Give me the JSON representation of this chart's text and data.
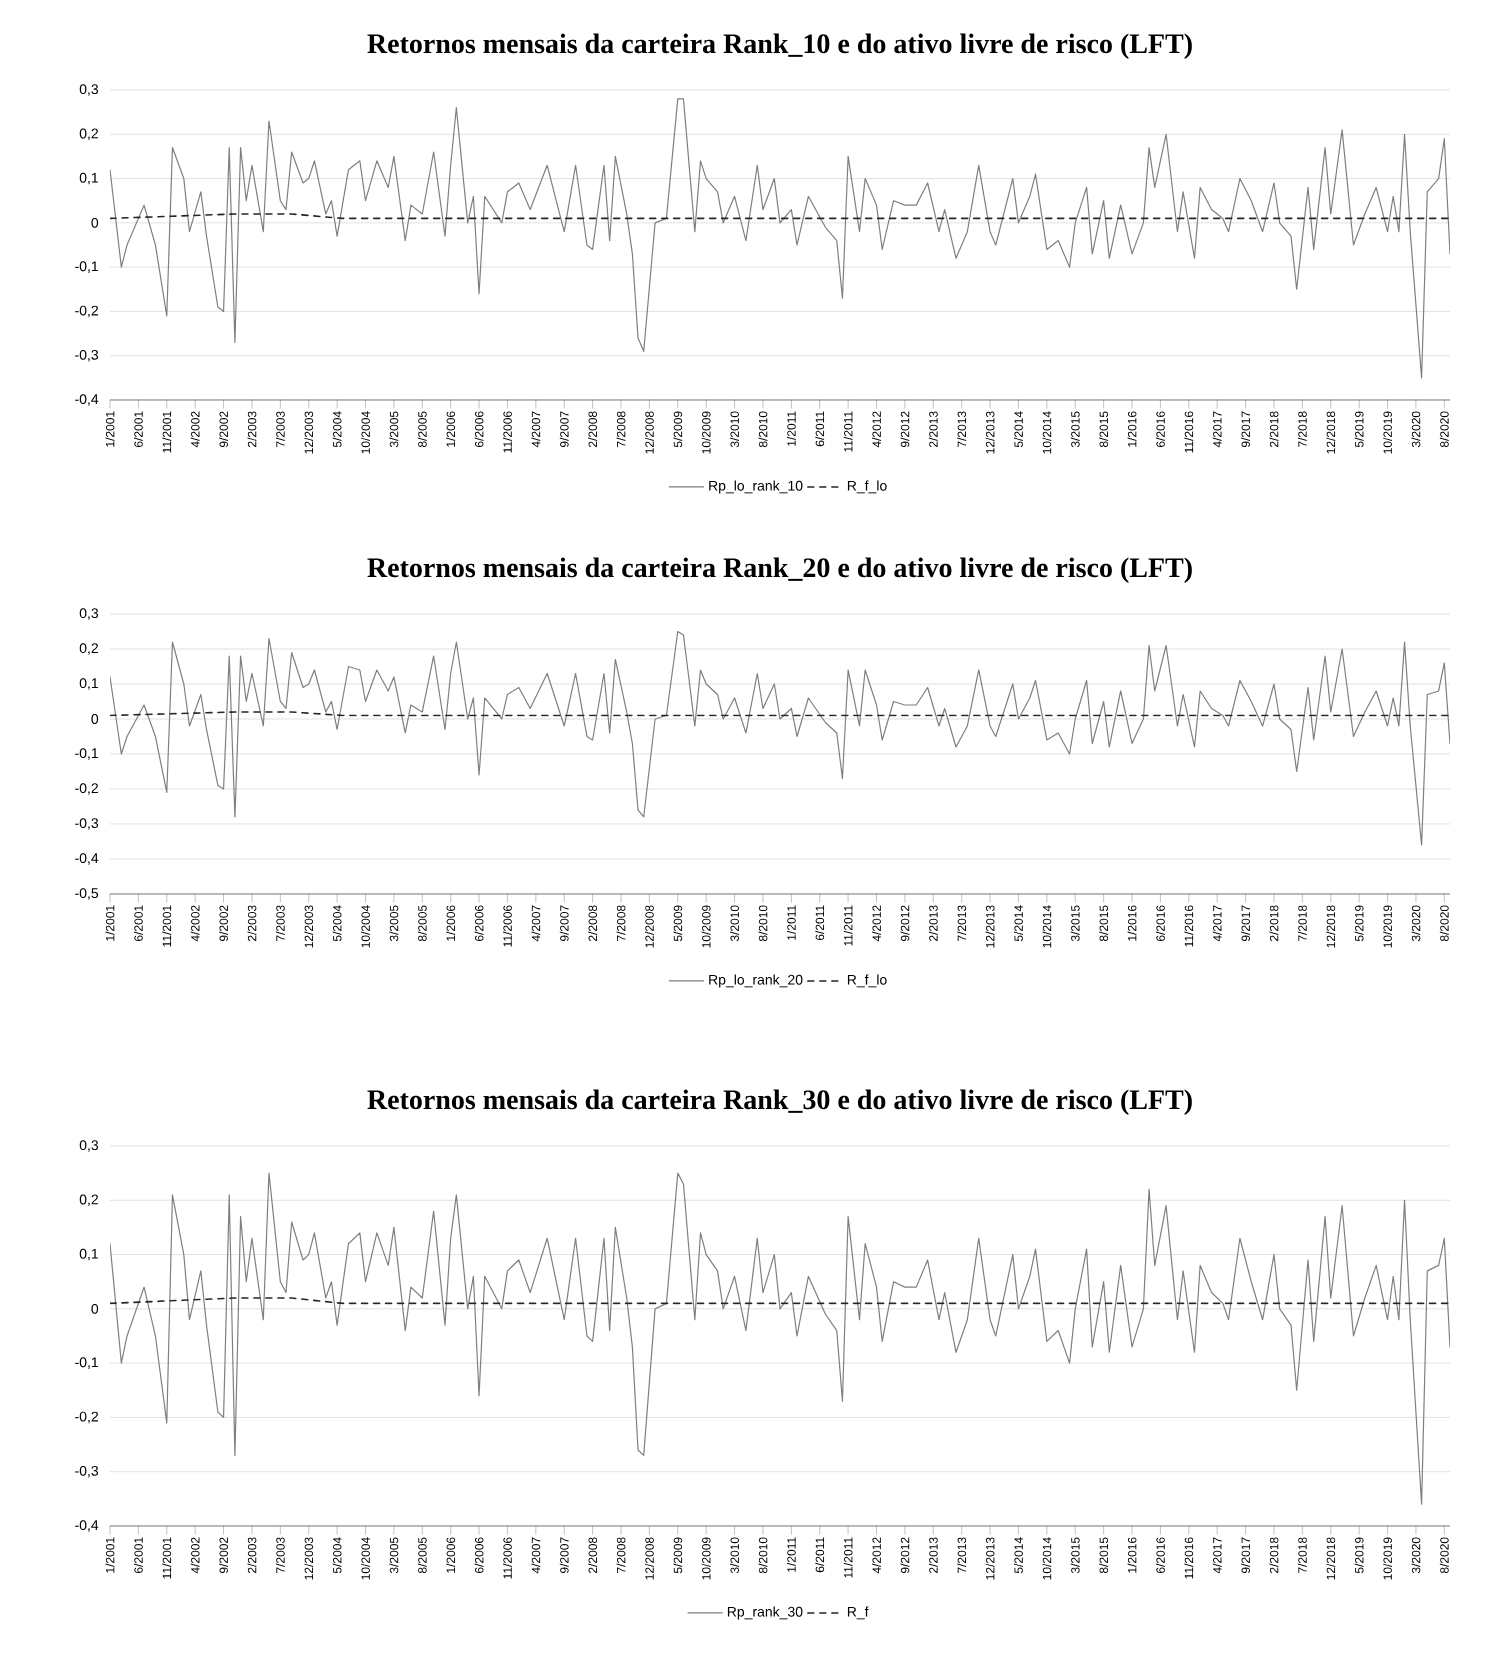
{
  "chart_data": [
    {
      "type": "line",
      "title": "Retornos mensais da carteira Rank_10 e do ativo livre de risco (LFT)",
      "grid": "y",
      "legend": "bottom",
      "marker": "none",
      "xlim": [
        "2001-01",
        "2020-09"
      ],
      "ylim": [
        -0.4,
        0.3
      ],
      "yticks": [
        {
          "value": -0.4,
          "label": "-0,4"
        },
        {
          "value": -0.3,
          "label": "-0,3"
        },
        {
          "value": -0.2,
          "label": "-0,2"
        },
        {
          "value": -0.1,
          "label": "-0,1"
        },
        0,
        {
          "value": 0.1,
          "label": "0,1"
        },
        {
          "value": 0.2,
          "label": "0,2"
        },
        {
          "value": 0.3,
          "label": "0,3"
        }
      ],
      "xticks": [
        {
          "value": "2001-01",
          "label": "1/2001"
        },
        {
          "value": "2001-06",
          "label": "6/2001"
        },
        {
          "value": "2001-11",
          "label": "11/2001"
        },
        {
          "value": "2002-04",
          "label": "4/2002"
        },
        {
          "value": "2002-09",
          "label": "9/2002"
        },
        {
          "value": "2003-02",
          "label": "2/2003"
        },
        {
          "value": "2003-07",
          "label": "7/2003"
        },
        {
          "value": "2003-12",
          "label": "12/2003"
        },
        {
          "value": "2004-05",
          "label": "5/2004"
        },
        {
          "value": "2004-10",
          "label": "10/2004"
        },
        {
          "value": "2005-03",
          "label": "3/2005"
        },
        {
          "value": "2005-08",
          "label": "8/2005"
        },
        {
          "value": "2006-01",
          "label": "1/2006"
        },
        {
          "value": "2006-06",
          "label": "6/2006"
        },
        {
          "value": "2006-11",
          "label": "11/2006"
        },
        {
          "value": "2007-04",
          "label": "4/2007"
        },
        {
          "value": "2007-09",
          "label": "9/2007"
        },
        {
          "value": "2008-02",
          "label": "2/2008"
        },
        {
          "value": "2008-07",
          "label": "7/2008"
        },
        {
          "value": "2008-12",
          "label": "12/2008"
        },
        {
          "value": "2009-05",
          "label": "5/2009"
        },
        {
          "value": "2009-10",
          "label": "10/2009"
        },
        {
          "value": "2010-03",
          "label": "3/2010"
        },
        {
          "value": "2010-08",
          "label": "8/2010"
        },
        {
          "value": "2011-01",
          "label": "1/2011"
        },
        {
          "value": "2011-06",
          "label": "6/2011"
        },
        {
          "value": "2011-11",
          "label": "11/2011"
        },
        {
          "value": "2012-04",
          "label": "4/2012"
        },
        {
          "value": "2012-09",
          "label": "9/2012"
        },
        {
          "value": "2013-02",
          "label": "2/2013"
        },
        {
          "value": "2013-07",
          "label": "7/2013"
        },
        {
          "value": "2013-12",
          "label": "12/2013"
        },
        {
          "value": "2014-05",
          "label": "5/2014"
        },
        {
          "value": "2014-10",
          "label": "10/2014"
        },
        {
          "value": "2015-03",
          "label": "3/2015"
        },
        {
          "value": "2015-08",
          "label": "8/2015"
        },
        {
          "value": "2016-01",
          "label": "1/2016"
        },
        {
          "value": "2016-06",
          "label": "6/2016"
        },
        {
          "value": "2016-11",
          "label": "11/2016"
        },
        {
          "value": "2017-04",
          "label": "4/2017"
        },
        {
          "value": "2017-09",
          "label": "9/2017"
        },
        {
          "value": "2018-02",
          "label": "2/2018"
        },
        {
          "value": "2018-07",
          "label": "7/2018"
        },
        {
          "value": "2018-12",
          "label": "12/2018"
        },
        {
          "value": "2019-05",
          "label": "5/2019"
        },
        {
          "value": "2019-10",
          "label": "10/2019"
        },
        {
          "value": "2020-03",
          "label": "3/2020"
        },
        {
          "value": "2020-08",
          "label": "8/2020"
        }
      ],
      "series": [
        {
          "name": "Rp_lo_rank_10",
          "color": "#7f7f7f",
          "line_style": "solid",
          "x": [
            "2001-01",
            "2001-03",
            "2001-04",
            "2001-07",
            "2001-09",
            "2001-11",
            "2001-12",
            "2002-02",
            "2002-03",
            "2002-05",
            "2002-06",
            "2002-08",
            "2002-09",
            "2002-10",
            "2002-11",
            "2002-12",
            "2003-01",
            "2003-02",
            "2003-04",
            "2003-05",
            "2003-07",
            "2003-08",
            "2003-09",
            "2003-11",
            "2003-12",
            "2004-01",
            "2004-03",
            "2004-04",
            "2004-05",
            "2004-07",
            "2004-09",
            "2004-10",
            "2004-12",
            "2005-02",
            "2005-03",
            "2005-05",
            "2005-06",
            "2005-08",
            "2005-10",
            "2005-12",
            "2006-01",
            "2006-02",
            "2006-04",
            "2006-05",
            "2006-06",
            "2006-07",
            "2006-10",
            "2006-11",
            "2007-01",
            "2007-03",
            "2007-06",
            "2007-08",
            "2007-09",
            "2007-11",
            "2008-01",
            "2008-02",
            "2008-04",
            "2008-05",
            "2008-06",
            "2008-08",
            "2008-09",
            "2008-10",
            "2008-11",
            "2009-01",
            "2009-03",
            "2009-05",
            "2009-06",
            "2009-08",
            "2009-09",
            "2009-10",
            "2009-12",
            "2010-01",
            "2010-03",
            "2010-05",
            "2010-07",
            "2010-08",
            "2010-10",
            "2010-11",
            "2011-01",
            "2011-02",
            "2011-04",
            "2011-07",
            "2011-09",
            "2011-10",
            "2011-11",
            "2012-01",
            "2012-02",
            "2012-04",
            "2012-05",
            "2012-07",
            "2012-09",
            "2012-11",
            "2013-01",
            "2013-03",
            "2013-04",
            "2013-06",
            "2013-08",
            "2013-10",
            "2013-12",
            "2014-01",
            "2014-04",
            "2014-05",
            "2014-07",
            "2014-08",
            "2014-10",
            "2014-12",
            "2015-02",
            "2015-03",
            "2015-05",
            "2015-06",
            "2015-08",
            "2015-09",
            "2015-11",
            "2016-01",
            "2016-03",
            "2016-04",
            "2016-05",
            "2016-07",
            "2016-09",
            "2016-10",
            "2016-12",
            "2017-01",
            "2017-03",
            "2017-05",
            "2017-06",
            "2017-08",
            "2017-10",
            "2017-12",
            "2018-02",
            "2018-03",
            "2018-05",
            "2018-06",
            "2018-08",
            "2018-09",
            "2018-11",
            "2018-12",
            "2019-02",
            "2019-04",
            "2019-06",
            "2019-08",
            "2019-10",
            "2019-11",
            "2019-12",
            "2020-01",
            "2020-02",
            "2020-04",
            "2020-05",
            "2020-07",
            "2020-08",
            "2020-09"
          ],
          "values": [
            0.12,
            -0.1,
            -0.05,
            0.04,
            -0.05,
            -0.21,
            0.17,
            0.1,
            -0.02,
            0.07,
            -0.03,
            -0.19,
            -0.2,
            0.17,
            -0.27,
            0.17,
            0.05,
            0.13,
            -0.02,
            0.23,
            0.05,
            0.03,
            0.16,
            0.09,
            0.1,
            0.14,
            0.02,
            0.05,
            -0.03,
            0.12,
            0.14,
            0.05,
            0.14,
            0.08,
            0.15,
            -0.04,
            0.04,
            0.02,
            0.16,
            -0.03,
            0.13,
            0.26,
            0.0,
            0.06,
            -0.16,
            0.06,
            0.0,
            0.07,
            0.09,
            0.03,
            0.13,
            0.03,
            -0.02,
            0.13,
            -0.05,
            -0.06,
            0.13,
            -0.04,
            0.15,
            0.02,
            -0.07,
            -0.26,
            -0.29,
            0.0,
            0.01,
            0.28,
            0.28,
            -0.02,
            0.14,
            0.1,
            0.07,
            0.0,
            0.06,
            -0.04,
            0.13,
            0.03,
            0.1,
            0.0,
            0.03,
            -0.05,
            0.06,
            -0.01,
            -0.04,
            -0.17,
            0.15,
            -0.02,
            0.1,
            0.04,
            -0.06,
            0.05,
            0.04,
            0.04,
            0.09,
            -0.02,
            0.03,
            -0.08,
            -0.02,
            0.13,
            -0.02,
            -0.05,
            0.1,
            0.0,
            0.06,
            0.11,
            -0.06,
            -0.04,
            -0.1,
            0.0,
            0.08,
            -0.07,
            0.05,
            -0.08,
            0.04,
            -0.07,
            0.0,
            0.17,
            0.08,
            0.2,
            -0.02,
            0.07,
            -0.08,
            0.08,
            0.03,
            0.01,
            -0.02,
            0.1,
            0.05,
            -0.02,
            0.09,
            0.0,
            -0.03,
            -0.15,
            0.08,
            -0.06,
            0.17,
            0.02,
            0.21,
            -0.05,
            0.02,
            0.08,
            -0.02,
            0.06,
            -0.02,
            0.2,
            -0.02,
            -0.35,
            0.07,
            0.1,
            0.19,
            -0.07
          ]
        },
        {
          "name": "R_f_lo",
          "color": "#262626",
          "line_style": "dashed",
          "x": [
            "2001-01",
            "2002-11",
            "2003-09",
            "2004-06",
            "2020-09"
          ],
          "values": [
            0.01,
            0.02,
            0.02,
            0.01,
            0.01
          ]
        }
      ]
    },
    {
      "type": "line",
      "title": "Retornos mensais da carteira Rank_20 e do ativo livre de risco (LFT)",
      "grid": "y",
      "legend": "bottom",
      "marker": "none",
      "xlim": [
        "2001-01",
        "2020-09"
      ],
      "ylim": [
        -0.5,
        0.3
      ],
      "yticks": [
        {
          "value": -0.5,
          "label": "-0,5"
        },
        {
          "value": -0.4,
          "label": "-0,4"
        },
        {
          "value": -0.3,
          "label": "-0,3"
        },
        {
          "value": -0.2,
          "label": "-0,2"
        },
        {
          "value": -0.1,
          "label": "-0,1"
        },
        0,
        {
          "value": 0.1,
          "label": "0,1"
        },
        {
          "value": 0.2,
          "label": "0,2"
        },
        {
          "value": 0.3,
          "label": "0,3"
        }
      ],
      "xticks": [
        {
          "value": "2001-01",
          "label": "1/2001"
        },
        {
          "value": "2001-06",
          "label": "6/2001"
        },
        {
          "value": "2001-11",
          "label": "11/2001"
        },
        {
          "value": "2002-04",
          "label": "4/2002"
        },
        {
          "value": "2002-09",
          "label": "9/2002"
        },
        {
          "value": "2003-02",
          "label": "2/2003"
        },
        {
          "value": "2003-07",
          "label": "7/2003"
        },
        {
          "value": "2003-12",
          "label": "12/2003"
        },
        {
          "value": "2004-05",
          "label": "5/2004"
        },
        {
          "value": "2004-10",
          "label": "10/2004"
        },
        {
          "value": "2005-03",
          "label": "3/2005"
        },
        {
          "value": "2005-08",
          "label": "8/2005"
        },
        {
          "value": "2006-01",
          "label": "1/2006"
        },
        {
          "value": "2006-06",
          "label": "6/2006"
        },
        {
          "value": "2006-11",
          "label": "11/2006"
        },
        {
          "value": "2007-04",
          "label": "4/2007"
        },
        {
          "value": "2007-09",
          "label": "9/2007"
        },
        {
          "value": "2008-02",
          "label": "2/2008"
        },
        {
          "value": "2008-07",
          "label": "7/2008"
        },
        {
          "value": "2008-12",
          "label": "12/2008"
        },
        {
          "value": "2009-05",
          "label": "5/2009"
        },
        {
          "value": "2009-10",
          "label": "10/2009"
        },
        {
          "value": "2010-03",
          "label": "3/2010"
        },
        {
          "value": "2010-08",
          "label": "8/2010"
        },
        {
          "value": "2011-01",
          "label": "1/2011"
        },
        {
          "value": "2011-06",
          "label": "6/2011"
        },
        {
          "value": "2011-11",
          "label": "11/2011"
        },
        {
          "value": "2012-04",
          "label": "4/2012"
        },
        {
          "value": "2012-09",
          "label": "9/2012"
        },
        {
          "value": "2013-02",
          "label": "2/2013"
        },
        {
          "value": "2013-07",
          "label": "7/2013"
        },
        {
          "value": "2013-12",
          "label": "12/2013"
        },
        {
          "value": "2014-05",
          "label": "5/2014"
        },
        {
          "value": "2014-10",
          "label": "10/2014"
        },
        {
          "value": "2015-03",
          "label": "3/2015"
        },
        {
          "value": "2015-08",
          "label": "8/2015"
        },
        {
          "value": "2016-01",
          "label": "1/2016"
        },
        {
          "value": "2016-06",
          "label": "6/2016"
        },
        {
          "value": "2016-11",
          "label": "11/2016"
        },
        {
          "value": "2017-04",
          "label": "4/2017"
        },
        {
          "value": "2017-09",
          "label": "9/2017"
        },
        {
          "value": "2018-02",
          "label": "2/2018"
        },
        {
          "value": "2018-07",
          "label": "7/2018"
        },
        {
          "value": "2018-12",
          "label": "12/2018"
        },
        {
          "value": "2019-05",
          "label": "5/2019"
        },
        {
          "value": "2019-10",
          "label": "10/2019"
        },
        {
          "value": "2020-03",
          "label": "3/2020"
        },
        {
          "value": "2020-08",
          "label": "8/2020"
        }
      ],
      "series": [
        {
          "name": "Rp_lo_rank_20",
          "color": "#7f7f7f",
          "line_style": "solid",
          "x": [
            "2001-01",
            "2001-03",
            "2001-04",
            "2001-07",
            "2001-09",
            "2001-11",
            "2001-12",
            "2002-02",
            "2002-03",
            "2002-05",
            "2002-06",
            "2002-08",
            "2002-09",
            "2002-10",
            "2002-11",
            "2002-12",
            "2003-01",
            "2003-02",
            "2003-04",
            "2003-05",
            "2003-07",
            "2003-08",
            "2003-09",
            "2003-11",
            "2003-12",
            "2004-01",
            "2004-03",
            "2004-04",
            "2004-05",
            "2004-07",
            "2004-09",
            "2004-10",
            "2004-12",
            "2005-02",
            "2005-03",
            "2005-05",
            "2005-06",
            "2005-08",
            "2005-10",
            "2005-12",
            "2006-01",
            "2006-02",
            "2006-04",
            "2006-05",
            "2006-06",
            "2006-07",
            "2006-10",
            "2006-11",
            "2007-01",
            "2007-03",
            "2007-06",
            "2007-08",
            "2007-09",
            "2007-11",
            "2008-01",
            "2008-02",
            "2008-04",
            "2008-05",
            "2008-06",
            "2008-08",
            "2008-09",
            "2008-10",
            "2008-11",
            "2009-01",
            "2009-03",
            "2009-05",
            "2009-06",
            "2009-08",
            "2009-09",
            "2009-10",
            "2009-12",
            "2010-01",
            "2010-03",
            "2010-05",
            "2010-07",
            "2010-08",
            "2010-10",
            "2010-11",
            "2011-01",
            "2011-02",
            "2011-04",
            "2011-07",
            "2011-09",
            "2011-10",
            "2011-11",
            "2012-01",
            "2012-02",
            "2012-04",
            "2012-05",
            "2012-07",
            "2012-09",
            "2012-11",
            "2013-01",
            "2013-03",
            "2013-04",
            "2013-06",
            "2013-08",
            "2013-10",
            "2013-12",
            "2014-01",
            "2014-04",
            "2014-05",
            "2014-07",
            "2014-08",
            "2014-10",
            "2014-12",
            "2015-02",
            "2015-03",
            "2015-05",
            "2015-06",
            "2015-08",
            "2015-09",
            "2015-11",
            "2016-01",
            "2016-03",
            "2016-04",
            "2016-05",
            "2016-07",
            "2016-09",
            "2016-10",
            "2016-12",
            "2017-01",
            "2017-03",
            "2017-05",
            "2017-06",
            "2017-08",
            "2017-10",
            "2017-12",
            "2018-02",
            "2018-03",
            "2018-05",
            "2018-06",
            "2018-08",
            "2018-09",
            "2018-11",
            "2018-12",
            "2019-02",
            "2019-04",
            "2019-06",
            "2019-08",
            "2019-10",
            "2019-11",
            "2019-12",
            "2020-01",
            "2020-02",
            "2020-04",
            "2020-05",
            "2020-07",
            "2020-08",
            "2020-09"
          ],
          "values": [
            0.12,
            -0.1,
            -0.05,
            0.04,
            -0.05,
            -0.21,
            0.22,
            0.1,
            -0.02,
            0.07,
            -0.03,
            -0.19,
            -0.2,
            0.18,
            -0.28,
            0.18,
            0.05,
            0.13,
            -0.02,
            0.23,
            0.05,
            0.03,
            0.19,
            0.09,
            0.1,
            0.14,
            0.02,
            0.05,
            -0.03,
            0.15,
            0.14,
            0.05,
            0.14,
            0.08,
            0.12,
            -0.04,
            0.04,
            0.02,
            0.18,
            -0.03,
            0.13,
            0.22,
            0.0,
            0.06,
            -0.16,
            0.06,
            0.0,
            0.07,
            0.09,
            0.03,
            0.13,
            0.03,
            -0.02,
            0.13,
            -0.05,
            -0.06,
            0.13,
            -0.04,
            0.17,
            0.02,
            -0.07,
            -0.26,
            -0.28,
            0.0,
            0.01,
            0.25,
            0.24,
            -0.02,
            0.14,
            0.1,
            0.07,
            0.0,
            0.06,
            -0.04,
            0.13,
            0.03,
            0.1,
            0.0,
            0.03,
            -0.05,
            0.06,
            -0.01,
            -0.04,
            -0.17,
            0.14,
            -0.02,
            0.14,
            0.04,
            -0.06,
            0.05,
            0.04,
            0.04,
            0.09,
            -0.02,
            0.03,
            -0.08,
            -0.02,
            0.14,
            -0.02,
            -0.05,
            0.1,
            0.0,
            0.06,
            0.11,
            -0.06,
            -0.04,
            -0.1,
            0.0,
            0.11,
            -0.07,
            0.05,
            -0.08,
            0.08,
            -0.07,
            0.0,
            0.21,
            0.08,
            0.21,
            -0.02,
            0.07,
            -0.08,
            0.08,
            0.03,
            0.01,
            -0.02,
            0.11,
            0.05,
            -0.02,
            0.1,
            0.0,
            -0.03,
            -0.15,
            0.09,
            -0.06,
            0.18,
            0.02,
            0.2,
            -0.05,
            0.02,
            0.08,
            -0.02,
            0.06,
            -0.02,
            0.22,
            -0.02,
            -0.36,
            0.07,
            0.08,
            0.16,
            -0.07
          ]
        },
        {
          "name": "R_f_lo",
          "color": "#262626",
          "line_style": "dashed",
          "x": [
            "2001-01",
            "2002-11",
            "2003-09",
            "2004-06",
            "2020-09"
          ],
          "values": [
            0.01,
            0.02,
            0.02,
            0.01,
            0.01
          ]
        }
      ]
    },
    {
      "type": "line",
      "title": "Retornos mensais da carteira Rank_30 e do ativo livre de risco (LFT)",
      "grid": "y",
      "legend": "bottom",
      "marker": "none",
      "xlim": [
        "2001-01",
        "2020-09"
      ],
      "ylim": [
        -0.4,
        0.3
      ],
      "yticks": [
        {
          "value": -0.4,
          "label": "-0,4"
        },
        {
          "value": -0.3,
          "label": "-0,3"
        },
        {
          "value": -0.2,
          "label": "-0,2"
        },
        {
          "value": -0.1,
          "label": "-0,1"
        },
        0,
        {
          "value": 0.1,
          "label": "0,1"
        },
        {
          "value": 0.2,
          "label": "0,2"
        },
        {
          "value": 0.3,
          "label": "0,3"
        }
      ],
      "xticks": [
        {
          "value": "2001-01",
          "label": "1/2001"
        },
        {
          "value": "2001-06",
          "label": "6/2001"
        },
        {
          "value": "2001-11",
          "label": "11/2001"
        },
        {
          "value": "2002-04",
          "label": "4/2002"
        },
        {
          "value": "2002-09",
          "label": "9/2002"
        },
        {
          "value": "2003-02",
          "label": "2/2003"
        },
        {
          "value": "2003-07",
          "label": "7/2003"
        },
        {
          "value": "2003-12",
          "label": "12/2003"
        },
        {
          "value": "2004-05",
          "label": "5/2004"
        },
        {
          "value": "2004-10",
          "label": "10/2004"
        },
        {
          "value": "2005-03",
          "label": "3/2005"
        },
        {
          "value": "2005-08",
          "label": "8/2005"
        },
        {
          "value": "2006-01",
          "label": "1/2006"
        },
        {
          "value": "2006-06",
          "label": "6/2006"
        },
        {
          "value": "2006-11",
          "label": "11/2006"
        },
        {
          "value": "2007-04",
          "label": "4/2007"
        },
        {
          "value": "2007-09",
          "label": "9/2007"
        },
        {
          "value": "2008-02",
          "label": "2/2008"
        },
        {
          "value": "2008-07",
          "label": "7/2008"
        },
        {
          "value": "2008-12",
          "label": "12/2008"
        },
        {
          "value": "2009-05",
          "label": "5/2009"
        },
        {
          "value": "2009-10",
          "label": "10/2009"
        },
        {
          "value": "2010-03",
          "label": "3/2010"
        },
        {
          "value": "2010-08",
          "label": "8/2010"
        },
        {
          "value": "2011-01",
          "label": "1/2011"
        },
        {
          "value": "2011-06",
          "label": "6/2011"
        },
        {
          "value": "2011-11",
          "label": "11/2011"
        },
        {
          "value": "2012-04",
          "label": "4/2012"
        },
        {
          "value": "2012-09",
          "label": "9/2012"
        },
        {
          "value": "2013-02",
          "label": "2/2013"
        },
        {
          "value": "2013-07",
          "label": "7/2013"
        },
        {
          "value": "2013-12",
          "label": "12/2013"
        },
        {
          "value": "2014-05",
          "label": "5/2014"
        },
        {
          "value": "2014-10",
          "label": "10/2014"
        },
        {
          "value": "2015-03",
          "label": "3/2015"
        },
        {
          "value": "2015-08",
          "label": "8/2015"
        },
        {
          "value": "2016-01",
          "label": "1/2016"
        },
        {
          "value": "2016-06",
          "label": "6/2016"
        },
        {
          "value": "2016-11",
          "label": "11/2016"
        },
        {
          "value": "2017-04",
          "label": "4/2017"
        },
        {
          "value": "2017-09",
          "label": "9/2017"
        },
        {
          "value": "2018-02",
          "label": "2/2018"
        },
        {
          "value": "2018-07",
          "label": "7/2018"
        },
        {
          "value": "2018-12",
          "label": "12/2018"
        },
        {
          "value": "2019-05",
          "label": "5/2019"
        },
        {
          "value": "2019-10",
          "label": "10/2019"
        },
        {
          "value": "2020-03",
          "label": "3/2020"
        },
        {
          "value": "2020-08",
          "label": "8/2020"
        }
      ],
      "series": [
        {
          "name": "Rp_rank_30",
          "color": "#7f7f7f",
          "line_style": "solid",
          "x": [
            "2001-01",
            "2001-03",
            "2001-04",
            "2001-07",
            "2001-09",
            "2001-11",
            "2001-12",
            "2002-02",
            "2002-03",
            "2002-05",
            "2002-06",
            "2002-08",
            "2002-09",
            "2002-10",
            "2002-11",
            "2002-12",
            "2003-01",
            "2003-02",
            "2003-04",
            "2003-05",
            "2003-07",
            "2003-08",
            "2003-09",
            "2003-11",
            "2003-12",
            "2004-01",
            "2004-03",
            "2004-04",
            "2004-05",
            "2004-07",
            "2004-09",
            "2004-10",
            "2004-12",
            "2005-02",
            "2005-03",
            "2005-05",
            "2005-06",
            "2005-08",
            "2005-10",
            "2005-12",
            "2006-01",
            "2006-02",
            "2006-04",
            "2006-05",
            "2006-06",
            "2006-07",
            "2006-10",
            "2006-11",
            "2007-01",
            "2007-03",
            "2007-06",
            "2007-08",
            "2007-09",
            "2007-11",
            "2008-01",
            "2008-02",
            "2008-04",
            "2008-05",
            "2008-06",
            "2008-08",
            "2008-09",
            "2008-10",
            "2008-11",
            "2009-01",
            "2009-03",
            "2009-05",
            "2009-06",
            "2009-08",
            "2009-09",
            "2009-10",
            "2009-12",
            "2010-01",
            "2010-03",
            "2010-05",
            "2010-07",
            "2010-08",
            "2010-10",
            "2010-11",
            "2011-01",
            "2011-02",
            "2011-04",
            "2011-07",
            "2011-09",
            "2011-10",
            "2011-11",
            "2012-01",
            "2012-02",
            "2012-04",
            "2012-05",
            "2012-07",
            "2012-09",
            "2012-11",
            "2013-01",
            "2013-03",
            "2013-04",
            "2013-06",
            "2013-08",
            "2013-10",
            "2013-12",
            "2014-01",
            "2014-04",
            "2014-05",
            "2014-07",
            "2014-08",
            "2014-10",
            "2014-12",
            "2015-02",
            "2015-03",
            "2015-05",
            "2015-06",
            "2015-08",
            "2015-09",
            "2015-11",
            "2016-01",
            "2016-03",
            "2016-04",
            "2016-05",
            "2016-07",
            "2016-09",
            "2016-10",
            "2016-12",
            "2017-01",
            "2017-03",
            "2017-05",
            "2017-06",
            "2017-08",
            "2017-10",
            "2017-12",
            "2018-02",
            "2018-03",
            "2018-05",
            "2018-06",
            "2018-08",
            "2018-09",
            "2018-11",
            "2018-12",
            "2019-02",
            "2019-04",
            "2019-06",
            "2019-08",
            "2019-10",
            "2019-11",
            "2019-12",
            "2020-01",
            "2020-02",
            "2020-04",
            "2020-05",
            "2020-07",
            "2020-08",
            "2020-09"
          ],
          "values": [
            0.12,
            -0.1,
            -0.05,
            0.04,
            -0.05,
            -0.21,
            0.21,
            0.1,
            -0.02,
            0.07,
            -0.03,
            -0.19,
            -0.2,
            0.21,
            -0.27,
            0.17,
            0.05,
            0.13,
            -0.02,
            0.25,
            0.05,
            0.03,
            0.16,
            0.09,
            0.1,
            0.14,
            0.02,
            0.05,
            -0.03,
            0.12,
            0.14,
            0.05,
            0.14,
            0.08,
            0.15,
            -0.04,
            0.04,
            0.02,
            0.18,
            -0.03,
            0.13,
            0.21,
            0.0,
            0.06,
            -0.16,
            0.06,
            0.0,
            0.07,
            0.09,
            0.03,
            0.13,
            0.03,
            -0.02,
            0.13,
            -0.05,
            -0.06,
            0.13,
            -0.04,
            0.15,
            0.02,
            -0.07,
            -0.26,
            -0.27,
            0.0,
            0.01,
            0.25,
            0.23,
            -0.02,
            0.14,
            0.1,
            0.07,
            0.0,
            0.06,
            -0.04,
            0.13,
            0.03,
            0.1,
            0.0,
            0.03,
            -0.05,
            0.06,
            -0.01,
            -0.04,
            -0.17,
            0.17,
            -0.02,
            0.12,
            0.04,
            -0.06,
            0.05,
            0.04,
            0.04,
            0.09,
            -0.02,
            0.03,
            -0.08,
            -0.02,
            0.13,
            -0.02,
            -0.05,
            0.1,
            0.0,
            0.06,
            0.11,
            -0.06,
            -0.04,
            -0.1,
            0.0,
            0.11,
            -0.07,
            0.05,
            -0.08,
            0.08,
            -0.07,
            0.0,
            0.22,
            0.08,
            0.19,
            -0.02,
            0.07,
            -0.08,
            0.08,
            0.03,
            0.01,
            -0.02,
            0.13,
            0.05,
            -0.02,
            0.1,
            0.0,
            -0.03,
            -0.15,
            0.09,
            -0.06,
            0.17,
            0.02,
            0.19,
            -0.05,
            0.02,
            0.08,
            -0.02,
            0.06,
            -0.02,
            0.2,
            -0.02,
            -0.36,
            0.07,
            0.08,
            0.13,
            -0.07
          ]
        },
        {
          "name": "R_f",
          "color": "#262626",
          "line_style": "dashed",
          "x": [
            "2001-01",
            "2002-11",
            "2003-09",
            "2004-06",
            "2020-09"
          ],
          "values": [
            0.01,
            0.02,
            0.02,
            0.01,
            0.01
          ]
        }
      ]
    }
  ]
}
